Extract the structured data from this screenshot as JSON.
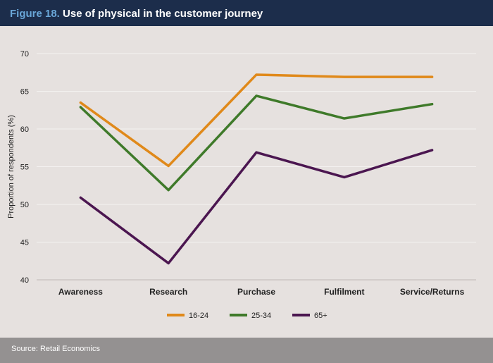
{
  "header": {
    "figure_label": "Figure 18.",
    "title": "Use of physical in the customer journey"
  },
  "footer": {
    "source": "Source: Retail Economics"
  },
  "chart_data": {
    "type": "line",
    "title": "Use of physical in the customer journey",
    "xlabel": "",
    "ylabel": "Proportion of respondents (%)",
    "ylim": [
      40,
      70
    ],
    "yticks": [
      40,
      45,
      50,
      55,
      60,
      65,
      70
    ],
    "grid": true,
    "legend_position": "bottom",
    "categories": [
      "Awareness",
      "Research",
      "Purchase",
      "Fulfilment",
      "Service/Returns"
    ],
    "series": [
      {
        "name": "16-24",
        "color": "#e0891a",
        "values": [
          63.5,
          55.1,
          67.2,
          66.9,
          66.9
        ]
      },
      {
        "name": "25-34",
        "color": "#3f7a2a",
        "values": [
          62.9,
          51.9,
          64.4,
          61.4,
          63.3
        ]
      },
      {
        "name": "65+",
        "color": "#4b1650",
        "values": [
          50.9,
          42.2,
          56.9,
          53.6,
          57.2
        ]
      }
    ]
  }
}
